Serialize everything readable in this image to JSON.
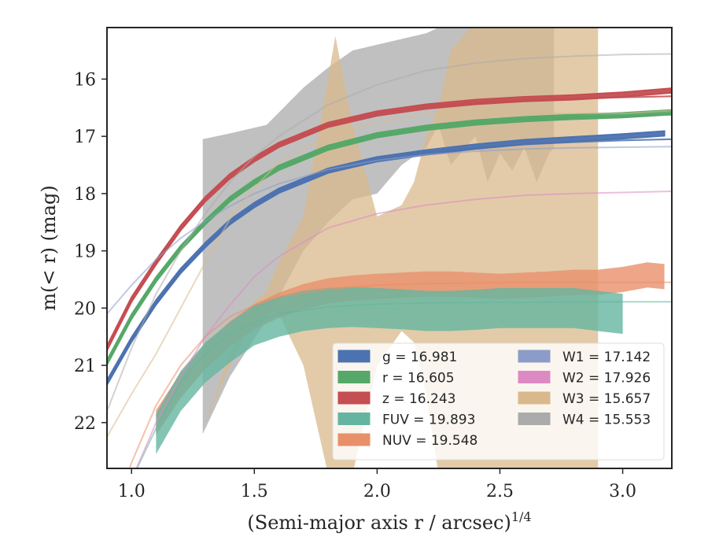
{
  "chart_data": {
    "type": "line",
    "xlabel": "(Semi-major axis r / arcsec)",
    "xlabel_exponent": "1/4",
    "ylabel": "m(< r) (mag)",
    "xlim": [
      0.9,
      3.2
    ],
    "ylim": [
      22.8,
      15.1
    ],
    "y_inverted": true,
    "x_ticks": [
      1.0,
      1.5,
      2.0,
      2.5,
      3.0
    ],
    "x_tick_labels": [
      "1.0",
      "1.5",
      "2.0",
      "2.5",
      "3.0"
    ],
    "y_ticks": [
      16,
      17,
      18,
      19,
      20,
      21,
      22
    ],
    "y_tick_labels": [
      "16",
      "17",
      "18",
      "19",
      "20",
      "21",
      "22"
    ],
    "grid": false,
    "legend_position": "lower-right",
    "series": [
      {
        "name": "g",
        "label": "g = 16.981",
        "color": "#4C72B0",
        "band_x": [
          0.9,
          1.0,
          1.1,
          1.2,
          1.3,
          1.4,
          1.5,
          1.6,
          1.8,
          2.0,
          2.2,
          2.4,
          2.6,
          2.8,
          3.0,
          3.17
        ],
        "band_y": [
          21.3,
          20.55,
          19.9,
          19.35,
          18.9,
          18.5,
          18.2,
          17.95,
          17.6,
          17.4,
          17.28,
          17.18,
          17.1,
          17.05,
          17.0,
          16.95
        ],
        "band_halfwidth": 0.04,
        "fit_x": [
          0.9,
          1.0,
          1.1,
          1.2,
          1.3,
          1.4,
          1.5,
          1.6,
          1.8,
          2.0,
          2.2,
          2.4,
          2.6,
          2.8,
          3.0,
          3.2
        ],
        "fit_y": [
          21.3,
          20.55,
          19.9,
          19.35,
          18.9,
          18.5,
          18.2,
          17.95,
          17.6,
          17.4,
          17.28,
          17.2,
          17.14,
          17.1,
          17.07,
          17.05
        ]
      },
      {
        "name": "r",
        "label": "r = 16.605",
        "color": "#55A868",
        "band_x": [
          0.9,
          1.0,
          1.1,
          1.2,
          1.3,
          1.4,
          1.5,
          1.6,
          1.8,
          2.0,
          2.2,
          2.4,
          2.6,
          2.8,
          3.0,
          3.2
        ],
        "band_y": [
          20.95,
          20.15,
          19.5,
          18.95,
          18.5,
          18.1,
          17.8,
          17.55,
          17.2,
          16.98,
          16.85,
          16.76,
          16.7,
          16.66,
          16.63,
          16.58
        ],
        "band_halfwidth": 0.04,
        "fit_x": [
          0.9,
          1.0,
          1.1,
          1.2,
          1.3,
          1.4,
          1.5,
          1.6,
          1.8,
          2.0,
          2.2,
          2.4,
          2.6,
          2.8,
          3.0,
          3.2
        ],
        "fit_y": [
          20.95,
          20.15,
          19.5,
          18.95,
          18.5,
          18.1,
          17.8,
          17.55,
          17.2,
          16.98,
          16.85,
          16.76,
          16.7,
          16.66,
          16.64,
          16.62
        ]
      },
      {
        "name": "z",
        "label": "z = 16.243",
        "color": "#C44E52",
        "band_x": [
          0.9,
          1.0,
          1.1,
          1.2,
          1.3,
          1.4,
          1.5,
          1.6,
          1.8,
          2.0,
          2.2,
          2.4,
          2.6,
          2.8,
          3.0,
          3.2
        ],
        "band_y": [
          20.7,
          19.85,
          19.2,
          18.6,
          18.1,
          17.7,
          17.4,
          17.15,
          16.8,
          16.6,
          16.48,
          16.4,
          16.35,
          16.32,
          16.27,
          16.2
        ],
        "band_halfwidth": 0.04,
        "fit_x": [
          0.9,
          1.0,
          1.1,
          1.2,
          1.3,
          1.4,
          1.5,
          1.6,
          1.8,
          2.0,
          2.2,
          2.4,
          2.6,
          2.8,
          3.0,
          3.2
        ],
        "fit_y": [
          20.7,
          19.85,
          19.2,
          18.6,
          18.1,
          17.7,
          17.4,
          17.15,
          16.8,
          16.6,
          16.48,
          16.41,
          16.37,
          16.34,
          16.32,
          16.3
        ]
      },
      {
        "name": "FUV",
        "label": "FUV = 19.893",
        "color": "#64B5A0",
        "band_x": [
          1.1,
          1.2,
          1.3,
          1.4,
          1.5,
          1.6,
          1.7,
          1.8,
          1.9,
          2.0,
          2.1,
          2.2,
          2.3,
          2.4,
          2.5,
          2.6,
          2.7,
          2.8,
          2.9,
          3.0
        ],
        "band_y": [
          22.2,
          21.45,
          20.95,
          20.6,
          20.3,
          20.15,
          20.05,
          20.0,
          19.98,
          20.0,
          20.02,
          20.05,
          20.05,
          20.03,
          20.0,
          20.0,
          20.0,
          20.0,
          20.05,
          20.1
        ],
        "band_halfwidth": 0.35,
        "fit_x": [
          0.9,
          1.0,
          1.1,
          1.2,
          1.3,
          1.4,
          1.5,
          1.6,
          1.8,
          2.0,
          2.2,
          2.4,
          2.6,
          2.8,
          3.0,
          3.2
        ],
        "fit_y": [
          24.5,
          23.0,
          22.1,
          21.3,
          20.8,
          20.45,
          20.25,
          20.1,
          19.98,
          19.93,
          19.91,
          19.9,
          19.9,
          19.89,
          19.89,
          19.89
        ]
      },
      {
        "name": "NUV",
        "label": "NUV = 19.548",
        "color": "#E8906A",
        "band_x": [
          1.1,
          1.2,
          1.3,
          1.4,
          1.5,
          1.6,
          1.7,
          1.8,
          1.9,
          2.0,
          2.1,
          2.2,
          2.3,
          2.4,
          2.5,
          2.6,
          2.7,
          2.8,
          2.9,
          3.0,
          3.1,
          3.17
        ],
        "band_y": [
          22.0,
          21.35,
          20.85,
          20.45,
          20.15,
          19.95,
          19.8,
          19.7,
          19.65,
          19.62,
          19.6,
          19.58,
          19.58,
          19.6,
          19.62,
          19.6,
          19.58,
          19.55,
          19.55,
          19.5,
          19.42,
          19.45
        ],
        "band_halfwidth": 0.22,
        "fit_x": [
          0.9,
          1.0,
          1.1,
          1.2,
          1.3,
          1.4,
          1.5,
          1.6,
          1.8,
          2.0,
          2.2,
          2.4,
          2.6,
          2.8,
          3.0,
          3.2
        ],
        "fit_y": [
          24.0,
          22.7,
          21.7,
          21.0,
          20.5,
          20.15,
          19.95,
          19.8,
          19.67,
          19.6,
          19.57,
          19.56,
          19.55,
          19.55,
          19.55,
          19.55
        ]
      },
      {
        "name": "W1",
        "label": "W1 = 17.142",
        "color": "#8C9CC8",
        "fit_x": [
          0.9,
          1.0,
          1.1,
          1.2,
          1.3,
          1.4,
          1.5,
          1.6,
          1.8,
          2.0,
          2.2,
          2.4,
          2.6,
          2.8,
          3.0,
          3.2
        ],
        "fit_y": [
          20.1,
          19.6,
          19.15,
          18.78,
          18.48,
          18.22,
          18.0,
          17.83,
          17.58,
          17.42,
          17.32,
          17.26,
          17.22,
          17.2,
          17.19,
          17.18
        ]
      },
      {
        "name": "W2",
        "label": "W2 = 17.926",
        "color": "#DD8AC4",
        "fit_x": [
          0.9,
          1.0,
          1.1,
          1.2,
          1.3,
          1.4,
          1.5,
          1.6,
          1.8,
          2.0,
          2.2,
          2.4,
          2.6,
          2.8,
          3.0,
          3.2
        ],
        "fit_y": [
          24.2,
          23.0,
          22.0,
          21.2,
          20.5,
          19.95,
          19.45,
          19.1,
          18.6,
          18.35,
          18.2,
          18.1,
          18.03,
          18.0,
          17.98,
          17.96
        ]
      },
      {
        "name": "W3",
        "label": "W3 = 15.657",
        "color": "#D9B98C",
        "band_x": [
          1.3,
          1.4,
          1.5,
          1.55,
          1.6,
          1.7,
          1.8,
          1.83,
          1.9,
          2.0,
          2.1,
          2.15,
          2.2,
          2.25,
          2.3,
          2.4,
          2.5,
          2.6,
          2.7,
          2.75,
          2.8,
          2.85,
          2.9
        ],
        "band_upper": [
          22.0,
          20.8,
          19.9,
          19.7,
          19.2,
          18.4,
          16.0,
          15.25,
          16.8,
          18.4,
          18.2,
          17.8,
          17.0,
          16.5,
          15.5,
          15.0,
          15.0,
          15.0,
          15.0,
          15.0,
          15.0,
          15.0,
          15.0
        ],
        "band_lower": [
          22.0,
          21.0,
          20.2,
          20.0,
          20.1,
          21.0,
          22.9,
          22.9,
          22.9,
          21.0,
          20.4,
          20.6,
          21.5,
          22.9,
          22.9,
          22.9,
          22.9,
          22.9,
          22.9,
          22.9,
          22.9,
          22.9,
          22.9
        ],
        "fit_x": [
          0.9,
          1.0,
          1.1,
          1.2,
          1.3,
          1.4,
          1.5,
          1.6,
          1.8,
          2.0,
          2.2,
          2.4,
          2.6,
          2.8,
          3.0,
          3.2
        ],
        "fit_y": [
          22.25,
          21.5,
          20.8,
          20.0,
          19.2,
          18.45,
          17.9,
          17.45,
          17.0,
          16.75,
          16.62,
          16.6,
          16.6,
          16.6,
          16.6,
          16.55
        ]
      },
      {
        "name": "W4",
        "label": "W4 = 15.553",
        "color": "#ABABAB",
        "band_x": [
          1.29,
          1.4,
          1.55,
          1.7,
          1.8,
          1.9,
          2.0,
          2.1,
          2.2,
          2.25,
          2.3,
          2.4,
          2.45,
          2.5,
          2.55,
          2.6,
          2.65,
          2.7,
          2.72
        ],
        "band_upper": [
          17.05,
          16.95,
          16.8,
          16.15,
          15.8,
          15.5,
          15.4,
          15.3,
          15.2,
          15.1,
          15.0,
          15.0,
          15.0,
          15.0,
          15.0,
          15.0,
          15.0,
          15.0,
          15.0
        ],
        "band_lower": [
          22.2,
          21.2,
          20.2,
          19.0,
          18.5,
          18.1,
          18.0,
          17.5,
          17.2,
          16.8,
          17.5,
          17.0,
          17.8,
          17.3,
          17.6,
          17.2,
          17.8,
          17.3,
          17.2
        ],
        "fit_x": [
          0.9,
          1.0,
          1.1,
          1.2,
          1.3,
          1.4,
          1.5,
          1.6,
          1.8,
          2.0,
          2.2,
          2.4,
          2.6,
          2.8,
          3.0,
          3.2
        ],
        "fit_y": [
          21.8,
          20.7,
          19.75,
          19.0,
          18.35,
          17.8,
          17.35,
          17.0,
          16.45,
          16.1,
          15.85,
          15.72,
          15.64,
          15.6,
          15.57,
          15.56
        ]
      }
    ],
    "legend": {
      "col1": [
        {
          "text": "g = 16.981",
          "color": "#4C72B0"
        },
        {
          "text": "r = 16.605",
          "color": "#55A868"
        },
        {
          "text": "z = 16.243",
          "color": "#C44E52"
        },
        {
          "text": "FUV = 19.893",
          "color": "#64B5A0"
        },
        {
          "text": "NUV = 19.548",
          "color": "#E8906A"
        }
      ],
      "col2": [
        {
          "text": "W1 = 17.142",
          "color": "#8C9CC8"
        },
        {
          "text": "W2 = 17.926",
          "color": "#DD8AC4"
        },
        {
          "text": "W3 = 15.657",
          "color": "#D9B98C"
        },
        {
          "text": "W4 = 15.553",
          "color": "#ABABAB"
        }
      ]
    }
  }
}
